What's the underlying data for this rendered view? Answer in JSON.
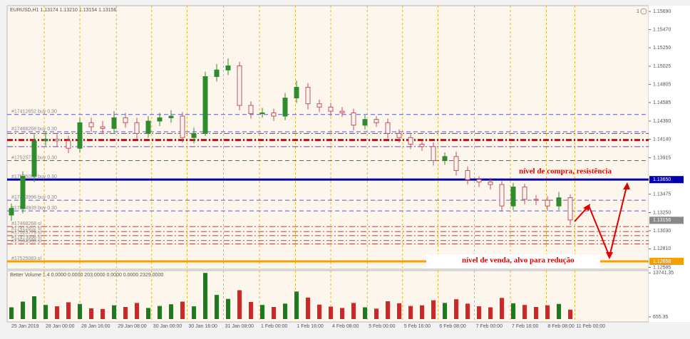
{
  "chart_data": {
    "type": "candlestick",
    "header": "EURUSD,H1  1.13174 1.13210 1.13154 1.13156",
    "corner_label": "1",
    "open": [
      1.1322,
      1.133,
      1.1369,
      1.1412,
      1.1414,
      1.1412,
      1.1403,
      1.1434,
      1.1429,
      1.1427,
      1.144,
      1.1434,
      1.1421,
      1.1436,
      1.144,
      1.1442,
      1.1416,
      1.1421,
      1.149,
      1.1498,
      1.1503,
      1.1455,
      1.1445,
      1.1446,
      1.1442,
      1.1464,
      1.1477,
      1.1457,
      1.1453,
      1.1448,
      1.1446,
      1.1431,
      1.1438,
      1.1434,
      1.1421,
      1.1416,
      1.1408,
      1.1405,
      1.1388,
      1.1393,
      1.1376,
      1.1365,
      1.1362,
      1.1359,
      1.1333,
      1.1356,
      1.1341,
      1.134,
      1.1333,
      1.1343
    ],
    "high": [
      1.1336,
      1.1375,
      1.142,
      1.1422,
      1.142,
      1.1418,
      1.144,
      1.144,
      1.1436,
      1.1448,
      1.1446,
      1.144,
      1.1442,
      1.1446,
      1.1449,
      1.1447,
      1.1428,
      1.1496,
      1.1505,
      1.1512,
      1.1508,
      1.146,
      1.1452,
      1.1451,
      1.147,
      1.1485,
      1.1482,
      1.1462,
      1.1458,
      1.1453,
      1.1451,
      1.1443,
      1.1442,
      1.1439,
      1.1426,
      1.142,
      1.1413,
      1.141,
      1.1398,
      1.1399,
      1.1381,
      1.1369,
      1.1367,
      1.1363,
      1.1361,
      1.136,
      1.1346,
      1.1345,
      1.135,
      1.1347
    ],
    "low": [
      1.1315,
      1.1324,
      1.1362,
      1.1406,
      1.1405,
      1.1397,
      1.1398,
      1.1423,
      1.1421,
      1.1422,
      1.1428,
      1.1414,
      1.1416,
      1.143,
      1.1434,
      1.141,
      1.1409,
      1.1418,
      1.1484,
      1.1492,
      1.1449,
      1.1439,
      1.144,
      1.1436,
      1.1437,
      1.1458,
      1.145,
      1.1447,
      1.1442,
      1.1441,
      1.1425,
      1.1426,
      1.1429,
      1.1415,
      1.141,
      1.1402,
      1.14,
      1.1382,
      1.1383,
      1.137,
      1.1359,
      1.1356,
      1.1353,
      1.1326,
      1.1328,
      1.1335,
      1.1334,
      1.1327,
      1.1328,
      1.131
    ],
    "close": [
      1.133,
      1.1369,
      1.1412,
      1.1414,
      1.1412,
      1.1403,
      1.1434,
      1.1429,
      1.1427,
      1.144,
      1.1434,
      1.1421,
      1.1436,
      1.144,
      1.1442,
      1.1416,
      1.1421,
      1.149,
      1.1498,
      1.1503,
      1.1455,
      1.1445,
      1.1446,
      1.1442,
      1.1464,
      1.1477,
      1.1457,
      1.1453,
      1.1448,
      1.1446,
      1.1431,
      1.1438,
      1.1434,
      1.1421,
      1.1416,
      1.1408,
      1.1405,
      1.1388,
      1.1393,
      1.1376,
      1.1365,
      1.1362,
      1.1359,
      1.1333,
      1.1356,
      1.1341,
      1.134,
      1.1333,
      1.1343,
      1.1316
    ],
    "up_color": "#2e8b2e",
    "down_color": "#c0506a",
    "ylim": [
      1.1258,
      1.1576
    ],
    "yticks": [
      {
        "value": 1.1569,
        "label": "1.15690"
      },
      {
        "value": 1.1547,
        "label": "1.15470"
      },
      {
        "value": 1.1525,
        "label": "1.15250"
      },
      {
        "value": 1.15025,
        "label": "1.15025"
      },
      {
        "value": 1.14805,
        "label": "1.14805"
      },
      {
        "value": 1.14585,
        "label": "1.14585"
      },
      {
        "value": 1.1436,
        "label": "1.14360"
      },
      {
        "value": 1.1414,
        "label": "1.14140"
      },
      {
        "value": 1.13915,
        "label": "1.13915"
      },
      {
        "value": 1.13475,
        "label": "1.13475"
      },
      {
        "value": 1.1325,
        "label": "1.13250"
      },
      {
        "value": 1.1303,
        "label": "1.13030"
      },
      {
        "value": 1.1281,
        "label": "1.12810"
      },
      {
        "value": 1.12585,
        "label": "1.12585"
      }
    ],
    "xlim": [
      -0.375,
      55.875
    ],
    "xticks": [
      {
        "value": -0.125,
        "label": "25 Jan 2019"
      },
      {
        "value": 2.875,
        "label": "28 Jan 00:00"
      },
      {
        "value": 6,
        "label": "28 Jan 16:00"
      },
      {
        "value": 9.2,
        "label": "29 Jan 08:00"
      },
      {
        "value": 12.3,
        "label": "30 Jan 00:00"
      },
      {
        "value": 15.4,
        "label": "30 Jan 16:00"
      },
      {
        "value": 18.6,
        "label": "31 Jan 08:00"
      },
      {
        "value": 21.75,
        "label": "1 Feb 00:00"
      },
      {
        "value": 24.9,
        "label": "1 Feb 16:00"
      },
      {
        "value": 28,
        "label": "4 Feb 08:00"
      },
      {
        "value": 31.2,
        "label": "5 Feb 00:00"
      },
      {
        "value": 34.3,
        "label": "5 Feb 16:00"
      },
      {
        "value": 37.4,
        "label": "6 Feb 08:00"
      },
      {
        "value": 40.6,
        "label": "7 Feb 00:00"
      },
      {
        "value": 43.75,
        "label": "7 Feb 16:00"
      },
      {
        "value": 46.9,
        "label": "8 Feb 08:00"
      },
      {
        "value": 49.4,
        "label": "11 Feb 00:00"
      }
    ],
    "grid_color": "#d9a520",
    "last": {
      "value": 1.13156,
      "label": "1.13156"
    },
    "levels": [
      {
        "label": "#17412652 buy 0.30",
        "price": 1.1444,
        "color": "#5a5ad0",
        "style": "dash"
      },
      {
        "label": "#17468268 buy 0.30",
        "price": 1.1423,
        "color": "#5a5ad0",
        "style": "dash"
      },
      {
        "price": 1.1421,
        "color": "#7a3aa8",
        "style": "dashdot"
      },
      {
        "price": 1.1413,
        "color": "#e00000",
        "style": "dashdot",
        "width": 3
      },
      {
        "price": 1.1405,
        "color": "#7a3aa8",
        "style": "dashdot"
      },
      {
        "label": "#17525779 buy 0.30",
        "price": 1.1388,
        "color": "#5a5ad0",
        "style": "dash"
      },
      {
        "label": "#17525083 buy 0.30",
        "price": 1.1365,
        "color": "#0000b0",
        "style": "solid",
        "width": 3,
        "axis_label": "1.13650"
      },
      {
        "label": "#17473996 buy 0.30",
        "price": 1.134,
        "color": "#5a5ad0",
        "style": "dash"
      },
      {
        "label": "#17534939 buy 0.30",
        "price": 1.1327,
        "color": "#5a5ad0",
        "style": "dash"
      },
      {
        "label": "#17468268 sl",
        "price": 1.1308,
        "color": "#c04040",
        "style": "dashdot"
      },
      {
        "label": "#17412652 sl",
        "price": 1.1302,
        "color": "#c04040",
        "style": "dashdot"
      },
      {
        "label": "#17525779 sl",
        "price": 1.1297,
        "color": "#c04040",
        "style": "dashdot"
      },
      {
        "label": "#17473996 sl",
        "price": 1.1291,
        "color": "#c04040",
        "style": "dashdot"
      },
      {
        "label": "#17534939 sl",
        "price": 1.1287,
        "color": "#c04040",
        "style": "dashdot"
      },
      {
        "label": "#17525083 sl",
        "price": 1.12658,
        "color": "#f5a000",
        "style": "solid",
        "width": 3,
        "axis_label": "1.12658"
      }
    ],
    "volume_title": "Better Volume 1.4 0.0000 0.0000 203.0000 0.0000 0.0000 2329.0000",
    "volume": [
      3500,
      5200,
      6800,
      4200,
      3800,
      5000,
      4500,
      3200,
      3000,
      4100,
      3600,
      4800,
      3300,
      3900,
      4400,
      5200,
      3800,
      13741,
      7200,
      6000,
      8600,
      5100,
      4200,
      3600,
      4600,
      8200,
      6400,
      4300,
      3700,
      3300,
      4800,
      3500,
      3100,
      5300,
      4700,
      3900,
      4100,
      5600,
      4800,
      5900,
      4600,
      3800,
      3500,
      6300,
      4700,
      4200,
      3600,
      4100,
      4500,
      2800
    ],
    "volume_up_color": "#1f7a1f",
    "volume_down_color": "#d02828",
    "vlim": [
      0,
      14000
    ],
    "vticks": [
      13741.35,
      655.35
    ],
    "annotations": {
      "buy": "nível de compra, resistência",
      "sell": "nível de venda, alvo para redução"
    }
  }
}
